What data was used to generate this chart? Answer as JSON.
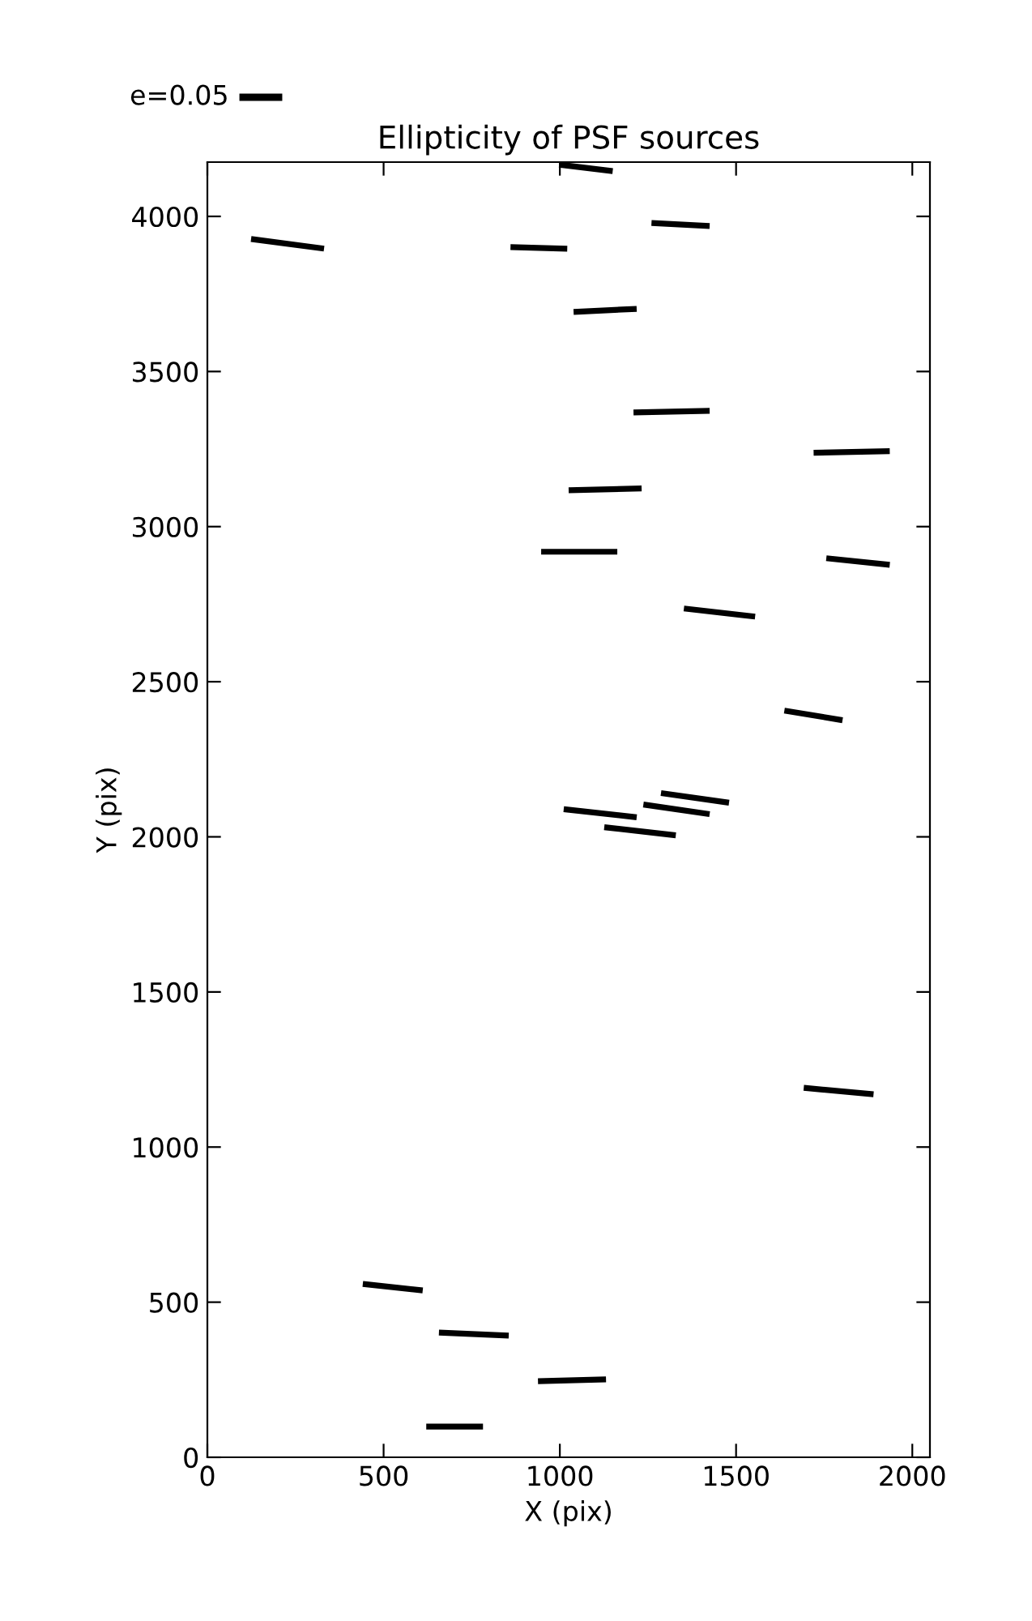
{
  "chart_data": {
    "type": "line",
    "title": "Ellipticity of PSF sources",
    "xlabel": "X (pix)",
    "ylabel": "Y (pix)",
    "xlim": [
      0,
      2050
    ],
    "ylim": [
      0,
      4175
    ],
    "xticks": [
      0,
      500,
      1000,
      1500,
      2000
    ],
    "yticks": [
      0,
      500,
      1000,
      1500,
      2000,
      2500,
      3000,
      3500,
      4000
    ],
    "grid": false,
    "legend": false,
    "marker": "none",
    "line_style": "solid",
    "annotations": [
      "e=0.05"
    ],
    "series": [
      {
        "color": "#000000",
        "x": [
          998,
          1150
        ],
        "values": [
          4167,
          4146
        ]
      },
      {
        "color": "#000000",
        "x": [
          124,
          331
        ],
        "values": [
          3927,
          3896
        ]
      },
      {
        "color": "#000000",
        "x": [
          860,
          1021
        ],
        "values": [
          3901,
          3896
        ]
      },
      {
        "color": "#000000",
        "x": [
          1260,
          1425
        ],
        "values": [
          3979,
          3969
        ]
      },
      {
        "color": "#000000",
        "x": [
          1039,
          1218
        ],
        "values": [
          3692,
          3702
        ]
      },
      {
        "color": "#000000",
        "x": [
          1209,
          1425
        ],
        "values": [
          3368,
          3373
        ]
      },
      {
        "color": "#000000",
        "x": [
          1720,
          1936
        ],
        "values": [
          3238,
          3243
        ]
      },
      {
        "color": "#000000",
        "x": [
          1025,
          1232
        ],
        "values": [
          3117,
          3123
        ]
      },
      {
        "color": "#000000",
        "x": [
          947,
          1163
        ],
        "values": [
          2919,
          2919
        ]
      },
      {
        "color": "#000000",
        "x": [
          1756,
          1936
        ],
        "values": [
          2898,
          2877
        ]
      },
      {
        "color": "#000000",
        "x": [
          1352,
          1554
        ],
        "values": [
          2736,
          2710
        ]
      },
      {
        "color": "#000000",
        "x": [
          1637,
          1802
        ],
        "values": [
          2407,
          2376
        ]
      },
      {
        "color": "#000000",
        "x": [
          1011,
          1218
        ],
        "values": [
          2089,
          2063
        ]
      },
      {
        "color": "#000000",
        "x": [
          1126,
          1329
        ],
        "values": [
          2031,
          2005
        ]
      },
      {
        "color": "#000000",
        "x": [
          1237,
          1425
        ],
        "values": [
          2104,
          2073
        ]
      },
      {
        "color": "#000000",
        "x": [
          1287,
          1480
        ],
        "values": [
          2141,
          2110
        ]
      },
      {
        "color": "#000000",
        "x": [
          1692,
          1890
        ],
        "values": [
          1191,
          1170
        ]
      },
      {
        "color": "#000000",
        "x": [
          441,
          611
        ],
        "values": [
          559,
          538
        ]
      },
      {
        "color": "#000000",
        "x": [
          657,
          855
        ],
        "values": [
          402,
          392
        ]
      },
      {
        "color": "#000000",
        "x": [
          938,
          1131
        ],
        "values": [
          245,
          251
        ]
      },
      {
        "color": "#000000",
        "x": [
          621,
          782
        ],
        "values": [
          99,
          99
        ]
      }
    ]
  }
}
